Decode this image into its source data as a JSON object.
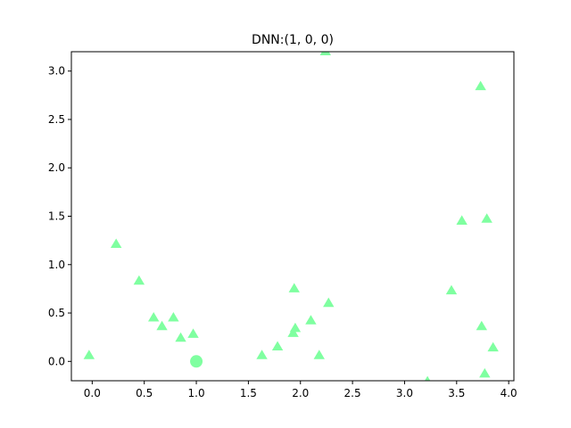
{
  "chart_data": {
    "type": "scatter",
    "title": "DNN:(1, 0, 0)",
    "xlabel": "",
    "ylabel": "",
    "xlim": [
      -0.2,
      4.05
    ],
    "ylim": [
      -0.2,
      3.2
    ],
    "xticks": [
      0.0,
      0.5,
      1.0,
      1.5,
      2.0,
      2.5,
      3.0,
      3.5,
      4.0
    ],
    "xtick_labels": [
      "0.0",
      "0.5",
      "1.0",
      "1.5",
      "2.0",
      "2.5",
      "3.0",
      "3.5",
      "4.0"
    ],
    "yticks": [
      0.0,
      0.5,
      1.0,
      1.5,
      2.0,
      2.5,
      3.0
    ],
    "ytick_labels": [
      "0.0",
      "0.5",
      "1.0",
      "1.5",
      "2.0",
      "2.5",
      "3.0"
    ],
    "grid": false,
    "color": "#7fffa0",
    "series": [
      {
        "marker": "triangle",
        "points": [
          [
            -0.03,
            0.06
          ],
          [
            0.23,
            1.21
          ],
          [
            0.45,
            0.83
          ],
          [
            0.59,
            0.45
          ],
          [
            0.67,
            0.36
          ],
          [
            0.78,
            0.45
          ],
          [
            0.85,
            0.24
          ],
          [
            0.97,
            0.28
          ],
          [
            1.63,
            0.06
          ],
          [
            1.78,
            0.15
          ],
          [
            1.93,
            0.29
          ],
          [
            1.95,
            0.34
          ],
          [
            1.94,
            0.75
          ],
          [
            2.1,
            0.42
          ],
          [
            2.18,
            0.06
          ],
          [
            2.27,
            0.6
          ],
          [
            2.24,
            3.2
          ],
          [
            3.22,
            -0.21
          ],
          [
            3.45,
            0.73
          ],
          [
            3.55,
            1.45
          ],
          [
            3.73,
            2.84
          ],
          [
            3.74,
            0.36
          ],
          [
            3.77,
            -0.13
          ],
          [
            3.79,
            1.47
          ],
          [
            3.85,
            0.14
          ]
        ]
      },
      {
        "marker": "circle",
        "points": [
          [
            1.0,
            0.0
          ]
        ]
      }
    ]
  }
}
